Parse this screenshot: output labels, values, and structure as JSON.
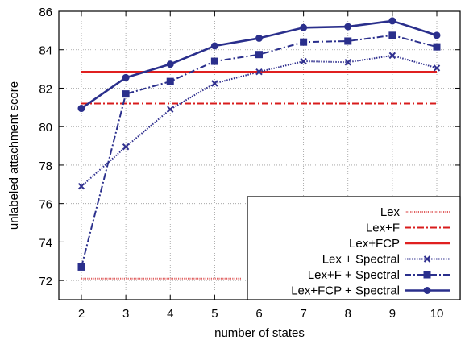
{
  "chart_data": {
    "type": "line",
    "title": "",
    "xlabel": "number of states",
    "ylabel": "unlabeled attachment score",
    "xlim": [
      2,
      10
    ],
    "ylim": [
      71,
      86
    ],
    "x_ticks": [
      2,
      3,
      4,
      5,
      6,
      7,
      8,
      9,
      10
    ],
    "y_ticks": [
      72,
      74,
      76,
      78,
      80,
      82,
      84,
      86
    ],
    "grid": true,
    "legend_position": "bottom-right",
    "x": [
      2,
      3,
      4,
      5,
      6,
      7,
      8,
      9,
      10
    ],
    "series": [
      {
        "name": "Lex",
        "kind": "constant",
        "value": 72.1,
        "x_range": [
          2,
          5.6
        ],
        "color": "#e06060",
        "dash": "1.2,1.2",
        "width": 2,
        "marker": "none"
      },
      {
        "name": "Lex+F",
        "kind": "constant",
        "value": 81.2,
        "x_range": [
          2,
          10
        ],
        "color": "#d81c1c",
        "dash": "8,3,2,3",
        "width": 2,
        "marker": "none"
      },
      {
        "name": "Lex+FCP",
        "kind": "constant",
        "value": 82.85,
        "x_range": [
          2,
          10
        ],
        "color": "#e02020",
        "dash": "",
        "width": 2.4,
        "marker": "none"
      },
      {
        "name": "Lex + Spectral",
        "kind": "line",
        "values": [
          76.9,
          78.95,
          80.9,
          82.25,
          82.85,
          83.4,
          83.35,
          83.7,
          83.05
        ],
        "color": "#30308f",
        "dash": "1.5,1.5",
        "width": 2,
        "marker": "x"
      },
      {
        "name": "Lex+F + Spectral",
        "kind": "line",
        "values": [
          72.7,
          81.7,
          82.35,
          83.4,
          83.75,
          84.4,
          84.45,
          84.75,
          84.15
        ],
        "color": "#2a2f8c",
        "dash": "8,3,2,3",
        "width": 2,
        "marker": "square"
      },
      {
        "name": "Lex+FCP + Spectral",
        "kind": "line",
        "values": [
          80.95,
          82.55,
          83.25,
          84.2,
          84.6,
          85.15,
          85.2,
          85.5,
          84.75
        ],
        "color": "#2a2f8c",
        "dash": "",
        "width": 2.6,
        "marker": "circle"
      }
    ]
  }
}
